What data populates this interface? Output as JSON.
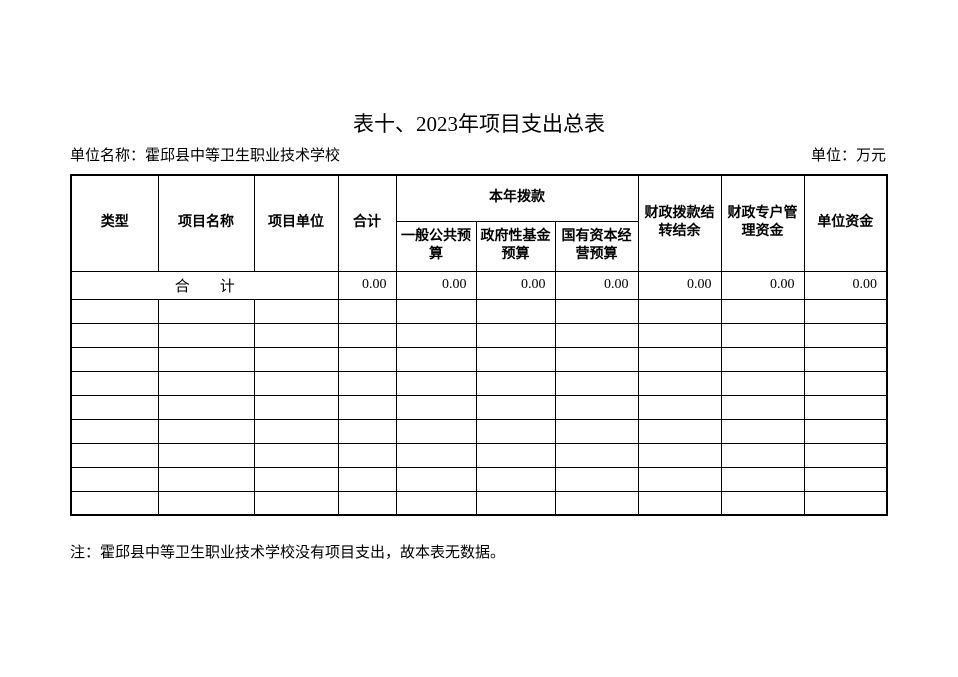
{
  "page": {
    "title": "表十、2023年项目支出总表",
    "unit_name": "单位名称：霍邱县中等卫生职业技术学校",
    "unit_of_measure": "单位：万元",
    "note": "注：霍邱县中等卫生职业技术学校没有项目支出，故本表无数据。"
  },
  "table": {
    "header": {
      "type": "类型",
      "project_name": "项目名称",
      "project_unit": "项目单位",
      "total": "合计",
      "current_year_appropriation": "本年拨款",
      "general_public_budget": "一般公共预\n算",
      "government_fund_budget": "政府性基金\n预算",
      "state_capital_budget": "国有资本经\n营预算",
      "fiscal_carryover": "财政拨款结\n转结余",
      "fiscal_special_account": "财政专户管\n理资金",
      "unit_funds": "单位资金"
    },
    "total_row": {
      "label": "合　　计",
      "values": [
        "0.00",
        "0.00",
        "0.00",
        "0.00",
        "0.00",
        "0.00",
        "0.00"
      ]
    },
    "empty_row_count": 9,
    "column_count": 10,
    "colors": {
      "border": "#000000",
      "text": "#000000",
      "background": "#ffffff"
    }
  }
}
